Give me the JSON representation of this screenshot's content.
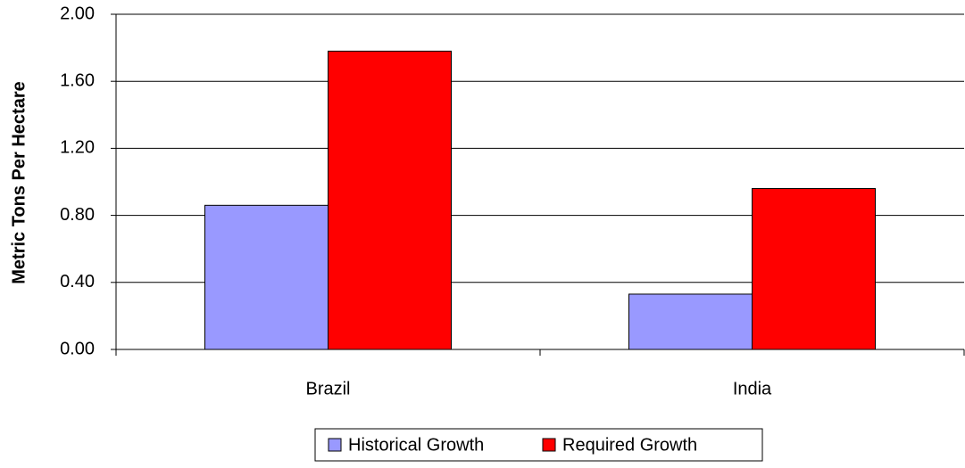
{
  "chart_data": {
    "type": "bar",
    "y_label": "Metric Tons Per Hectare",
    "categories": [
      "Brazil",
      "India"
    ],
    "series": [
      {
        "name": "Historical Growth",
        "color": "#9999ff",
        "values": [
          0.86,
          0.33
        ]
      },
      {
        "name": "Required Growth",
        "color": "#ff0000",
        "values": [
          1.78,
          0.96
        ]
      }
    ],
    "ylim": [
      0,
      2
    ],
    "yticks": [
      {
        "value": 0,
        "label": "0.00"
      },
      {
        "value": 0.4,
        "label": "0.40"
      },
      {
        "value": 0.8,
        "label": "0.80"
      },
      {
        "value": 1.2,
        "label": "1.20"
      },
      {
        "value": 1.6,
        "label": "1.60"
      },
      {
        "value": 2,
        "label": "2.00"
      }
    ],
    "grid": true,
    "legend": "bottom"
  }
}
